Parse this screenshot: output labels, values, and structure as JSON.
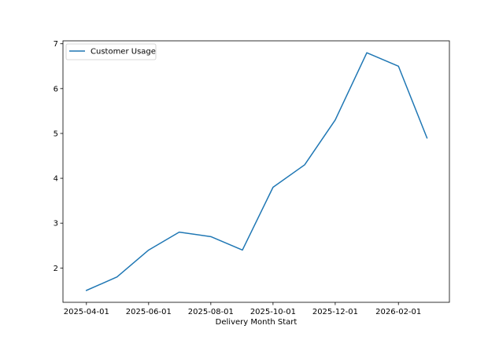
{
  "chart_data": {
    "type": "line",
    "xlabel": "Delivery Month Start",
    "ylabel": "",
    "x": [
      "2025-04-01",
      "2025-05-01",
      "2025-06-01",
      "2025-07-01",
      "2025-08-01",
      "2025-09-01",
      "2025-10-01",
      "2025-11-01",
      "2025-12-01",
      "2026-01-01",
      "2026-02-01",
      "2026-03-01"
    ],
    "series": [
      {
        "name": "Customer Usage",
        "color": "#1f77b4",
        "values": [
          1.5,
          1.8,
          2.4,
          2.8,
          2.7,
          2.4,
          3.8,
          4.3,
          5.3,
          6.8,
          6.5,
          4.9
        ]
      }
    ],
    "xticks": [
      "2025-04-01",
      "2025-06-01",
      "2025-08-01",
      "2025-10-01",
      "2025-12-01",
      "2026-02-01"
    ],
    "yticks": [
      2,
      3,
      4,
      5,
      6,
      7
    ],
    "ylim": [
      1.235,
      7.065
    ],
    "xlim": [
      "2025-03-09",
      "2026-03-23"
    ],
    "grid": false,
    "legend_position": "upper left"
  }
}
